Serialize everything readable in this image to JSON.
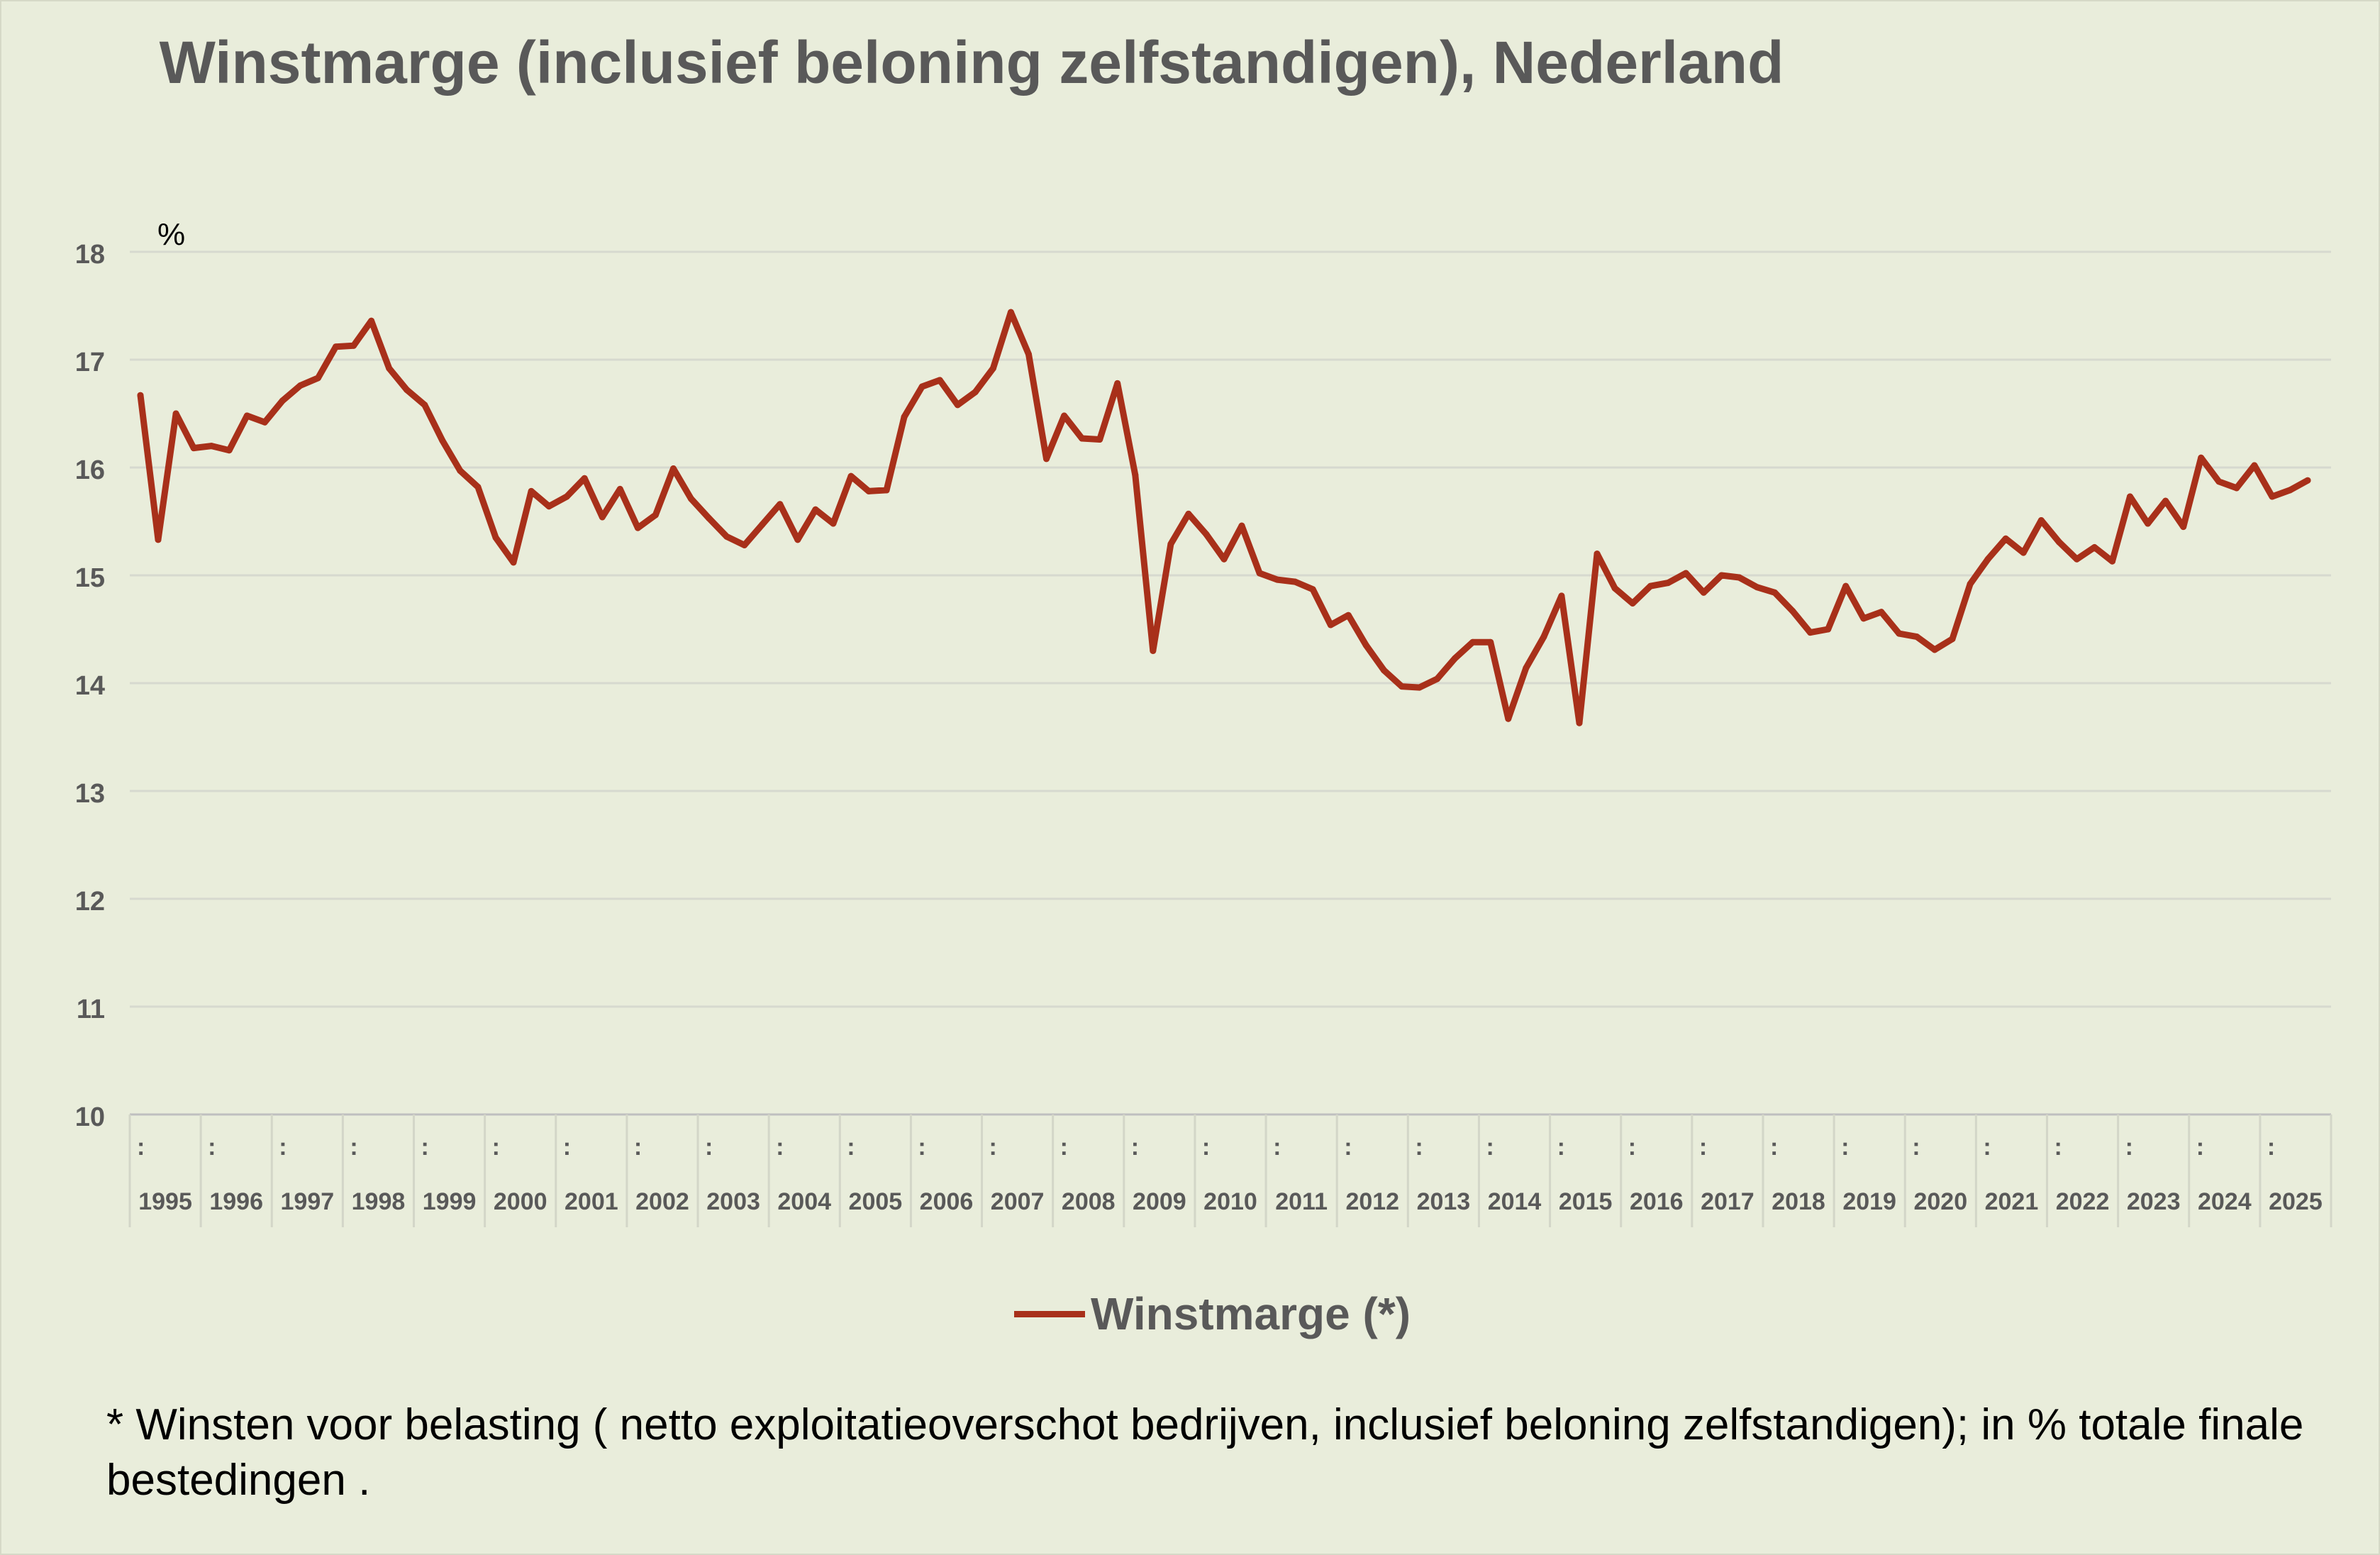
{
  "chart_data": {
    "type": "line",
    "title": "Winstmarge (inclusief beloning zelfstandigen), Nederland",
    "ylabel": "%",
    "ylim": [
      10,
      18
    ],
    "yticks": [
      10,
      11,
      12,
      13,
      14,
      15,
      16,
      17,
      18
    ],
    "grid": true,
    "legend_position": "bottom-center",
    "year_labels": [
      "1995",
      "1996",
      "1997",
      "1998",
      "1999",
      "2000",
      "2001",
      "2002",
      "2003",
      "2004",
      "2005",
      "2006",
      "2007",
      "2008",
      "2009",
      "2010",
      "2011",
      "2012",
      "2013",
      "2014",
      "2015",
      "2016",
      "2017",
      "2018",
      "2019",
      "2020",
      "2021",
      "2022",
      "2023",
      "2024",
      "2025"
    ],
    "period_marker": ":",
    "series": [
      {
        "name": "Winstmarge (*)",
        "color": "#a8301a",
        "values": [
          16.67,
          15.33,
          16.5,
          16.18,
          16.2,
          16.16,
          16.48,
          16.42,
          16.62,
          16.76,
          16.83,
          17.12,
          17.13,
          17.36,
          16.92,
          16.72,
          16.58,
          16.25,
          15.97,
          15.82,
          15.35,
          15.12,
          15.78,
          15.64,
          15.73,
          15.9,
          15.54,
          15.8,
          15.44,
          15.56,
          15.99,
          15.71,
          15.53,
          15.36,
          15.28,
          15.47,
          15.66,
          15.33,
          15.61,
          15.48,
          15.92,
          15.78,
          15.79,
          16.47,
          16.75,
          16.81,
          16.58,
          16.7,
          16.92,
          17.44,
          17.05,
          16.08,
          16.48,
          16.27,
          16.26,
          16.78,
          15.93,
          14.3,
          15.29,
          15.57,
          15.38,
          15.15,
          15.46,
          15.02,
          14.96,
          14.94,
          14.87,
          14.54,
          14.63,
          14.35,
          14.12,
          13.97,
          13.96,
          14.04,
          14.23,
          14.38,
          14.38,
          13.67,
          14.14,
          14.43,
          14.81,
          13.63,
          15.2,
          14.88,
          14.74,
          14.9,
          14.93,
          15.02,
          14.84,
          15.0,
          14.98,
          14.89,
          14.84,
          14.67,
          14.47,
          14.5,
          14.9,
          14.6,
          14.66,
          14.46,
          14.43,
          14.31,
          14.41,
          14.92,
          15.15,
          15.34,
          15.21,
          15.51,
          15.31,
          15.15,
          15.26,
          15.13,
          15.73,
          15.48,
          15.69,
          15.45,
          16.09,
          15.87,
          15.81,
          16.02,
          15.73,
          15.79,
          15.88
        ]
      }
    ]
  },
  "legend": {
    "label": "Winstmarge (*)"
  },
  "footnote": "* Winsten voor belasting ( netto exploitatieoverschot bedrijven, inclusief beloning zelfstandigen); in % totale finale bestedingen ."
}
